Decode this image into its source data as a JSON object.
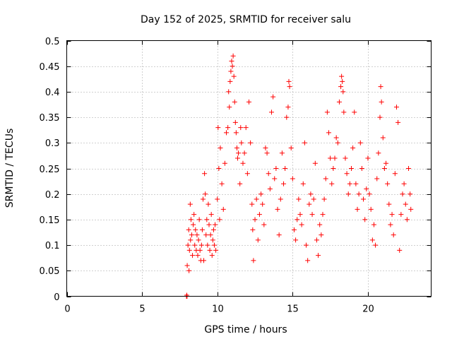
{
  "chart_data": {
    "type": "scatter",
    "title": "Day 152 of 2025, SRMTID for receiver salu",
    "xlabel": "GPS time / hours",
    "ylabel": "SRMTID / TECUs",
    "xlim": [
      0,
      24.2
    ],
    "ylim": [
      0,
      0.5
    ],
    "x_ticks": [
      0,
      5,
      10,
      15,
      20
    ],
    "x_tick_labels": [
      "0",
      "5",
      "10",
      "15",
      "20"
    ],
    "y_ticks": [
      0,
      0.05,
      0.1,
      0.15,
      0.2,
      0.25,
      0.3,
      0.35,
      0.4,
      0.45,
      0.5
    ],
    "y_tick_labels": [
      "0",
      "0.05",
      "0.1",
      "0.15",
      "0.2",
      "0.25",
      "0.3",
      "0.35",
      "0.4",
      "0.45",
      "0.5"
    ],
    "grid": true,
    "marker": "plus",
    "color": "#ff0000",
    "series": [
      {
        "points": [
          [
            7.95,
            0.0
          ],
          [
            7.97,
            0.002
          ],
          [
            7.99,
            0.0
          ],
          [
            8.0,
            0.06
          ],
          [
            8.05,
            0.1
          ],
          [
            8.1,
            0.13
          ],
          [
            8.12,
            0.05
          ],
          [
            8.15,
            0.09
          ],
          [
            8.2,
            0.18
          ],
          [
            8.22,
            0.11
          ],
          [
            8.25,
            0.15
          ],
          [
            8.3,
            0.12
          ],
          [
            8.35,
            0.08
          ],
          [
            8.4,
            0.14
          ],
          [
            8.45,
            0.16
          ],
          [
            8.5,
            0.1
          ],
          [
            8.55,
            0.13
          ],
          [
            8.6,
            0.09
          ],
          [
            8.65,
            0.12
          ],
          [
            8.7,
            0.08
          ],
          [
            8.75,
            0.11
          ],
          [
            8.8,
            0.15
          ],
          [
            8.85,
            0.09
          ],
          [
            8.9,
            0.07
          ],
          [
            8.95,
            0.1
          ],
          [
            9.0,
            0.13
          ],
          [
            9.05,
            0.19
          ],
          [
            9.1,
            0.07
          ],
          [
            9.15,
            0.24
          ],
          [
            9.2,
            0.2
          ],
          [
            9.25,
            0.12
          ],
          [
            9.3,
            0.15
          ],
          [
            9.35,
            0.1
          ],
          [
            9.4,
            0.18
          ],
          [
            9.45,
            0.14
          ],
          [
            9.5,
            0.09
          ],
          [
            9.55,
            0.12
          ],
          [
            9.6,
            0.16
          ],
          [
            9.65,
            0.08
          ],
          [
            9.7,
            0.11
          ],
          [
            9.75,
            0.13
          ],
          [
            9.8,
            0.1
          ],
          [
            9.85,
            0.14
          ],
          [
            9.9,
            0.09
          ],
          [
            10.0,
            0.19
          ],
          [
            10.05,
            0.33
          ],
          [
            10.1,
            0.25
          ],
          [
            10.15,
            0.15
          ],
          [
            10.2,
            0.29
          ],
          [
            10.3,
            0.22
          ],
          [
            10.4,
            0.17
          ],
          [
            10.5,
            0.26
          ],
          [
            10.6,
            0.32
          ],
          [
            10.7,
            0.33
          ],
          [
            10.75,
            0.4
          ],
          [
            10.8,
            0.37
          ],
          [
            10.85,
            0.42
          ],
          [
            10.9,
            0.44
          ],
          [
            10.95,
            0.46
          ],
          [
            11.0,
            0.45
          ],
          [
            11.05,
            0.47
          ],
          [
            11.1,
            0.43
          ],
          [
            11.15,
            0.38
          ],
          [
            11.2,
            0.34
          ],
          [
            11.25,
            0.32
          ],
          [
            11.3,
            0.29
          ],
          [
            11.35,
            0.27
          ],
          [
            11.4,
            0.28
          ],
          [
            11.5,
            0.22
          ],
          [
            11.55,
            0.33
          ],
          [
            11.6,
            0.3
          ],
          [
            11.7,
            0.26
          ],
          [
            11.8,
            0.28
          ],
          [
            11.9,
            0.33
          ],
          [
            12.0,
            0.24
          ],
          [
            12.1,
            0.38
          ],
          [
            12.2,
            0.3
          ],
          [
            12.3,
            0.18
          ],
          [
            12.35,
            0.13
          ],
          [
            12.4,
            0.07
          ],
          [
            12.5,
            0.15
          ],
          [
            12.6,
            0.19
          ],
          [
            12.7,
            0.11
          ],
          [
            12.8,
            0.16
          ],
          [
            12.9,
            0.2
          ],
          [
            13.0,
            0.18
          ],
          [
            13.1,
            0.14
          ],
          [
            13.2,
            0.29
          ],
          [
            13.3,
            0.28
          ],
          [
            13.4,
            0.24
          ],
          [
            13.5,
            0.21
          ],
          [
            13.6,
            0.36
          ],
          [
            13.7,
            0.39
          ],
          [
            13.8,
            0.23
          ],
          [
            13.9,
            0.25
          ],
          [
            14.0,
            0.17
          ],
          [
            14.1,
            0.12
          ],
          [
            14.2,
            0.19
          ],
          [
            14.3,
            0.28
          ],
          [
            14.4,
            0.22
          ],
          [
            14.5,
            0.25
          ],
          [
            14.6,
            0.35
          ],
          [
            14.7,
            0.37
          ],
          [
            14.75,
            0.42
          ],
          [
            14.8,
            0.41
          ],
          [
            14.9,
            0.29
          ],
          [
            15.0,
            0.23
          ],
          [
            15.1,
            0.13
          ],
          [
            15.2,
            0.11
          ],
          [
            15.3,
            0.15
          ],
          [
            15.4,
            0.19
          ],
          [
            15.5,
            0.16
          ],
          [
            15.6,
            0.14
          ],
          [
            15.7,
            0.22
          ],
          [
            15.8,
            0.3
          ],
          [
            15.9,
            0.1
          ],
          [
            16.0,
            0.07
          ],
          [
            16.1,
            0.18
          ],
          [
            16.2,
            0.2
          ],
          [
            16.3,
            0.16
          ],
          [
            16.4,
            0.19
          ],
          [
            16.5,
            0.26
          ],
          [
            16.6,
            0.11
          ],
          [
            16.7,
            0.08
          ],
          [
            16.8,
            0.14
          ],
          [
            16.9,
            0.12
          ],
          [
            17.0,
            0.16
          ],
          [
            17.1,
            0.19
          ],
          [
            17.2,
            0.23
          ],
          [
            17.3,
            0.36
          ],
          [
            17.4,
            0.32
          ],
          [
            17.5,
            0.27
          ],
          [
            17.6,
            0.22
          ],
          [
            17.7,
            0.25
          ],
          [
            17.8,
            0.27
          ],
          [
            17.9,
            0.31
          ],
          [
            18.0,
            0.3
          ],
          [
            18.1,
            0.38
          ],
          [
            18.2,
            0.41
          ],
          [
            18.25,
            0.43
          ],
          [
            18.3,
            0.42
          ],
          [
            18.35,
            0.4
          ],
          [
            18.4,
            0.36
          ],
          [
            18.5,
            0.27
          ],
          [
            18.6,
            0.24
          ],
          [
            18.7,
            0.2
          ],
          [
            18.8,
            0.22
          ],
          [
            18.9,
            0.25
          ],
          [
            19.0,
            0.29
          ],
          [
            19.1,
            0.36
          ],
          [
            19.2,
            0.22
          ],
          [
            19.3,
            0.17
          ],
          [
            19.4,
            0.2
          ],
          [
            19.5,
            0.3
          ],
          [
            19.6,
            0.25
          ],
          [
            19.7,
            0.19
          ],
          [
            19.8,
            0.15
          ],
          [
            19.9,
            0.21
          ],
          [
            20.0,
            0.27
          ],
          [
            20.1,
            0.2
          ],
          [
            20.2,
            0.17
          ],
          [
            20.3,
            0.11
          ],
          [
            20.4,
            0.14
          ],
          [
            20.5,
            0.1
          ],
          [
            20.6,
            0.23
          ],
          [
            20.7,
            0.28
          ],
          [
            20.8,
            0.35
          ],
          [
            20.85,
            0.41
          ],
          [
            20.9,
            0.38
          ],
          [
            21.0,
            0.31
          ],
          [
            21.1,
            0.25
          ],
          [
            21.2,
            0.26
          ],
          [
            21.3,
            0.22
          ],
          [
            21.4,
            0.18
          ],
          [
            21.5,
            0.14
          ],
          [
            21.6,
            0.16
          ],
          [
            21.7,
            0.12
          ],
          [
            21.8,
            0.24
          ],
          [
            21.9,
            0.37
          ],
          [
            22.0,
            0.34
          ],
          [
            22.1,
            0.09
          ],
          [
            22.2,
            0.16
          ],
          [
            22.3,
            0.2
          ],
          [
            22.4,
            0.22
          ],
          [
            22.5,
            0.18
          ],
          [
            22.6,
            0.15
          ],
          [
            22.7,
            0.25
          ],
          [
            22.8,
            0.2
          ],
          [
            22.85,
            0.17
          ]
        ]
      }
    ]
  }
}
